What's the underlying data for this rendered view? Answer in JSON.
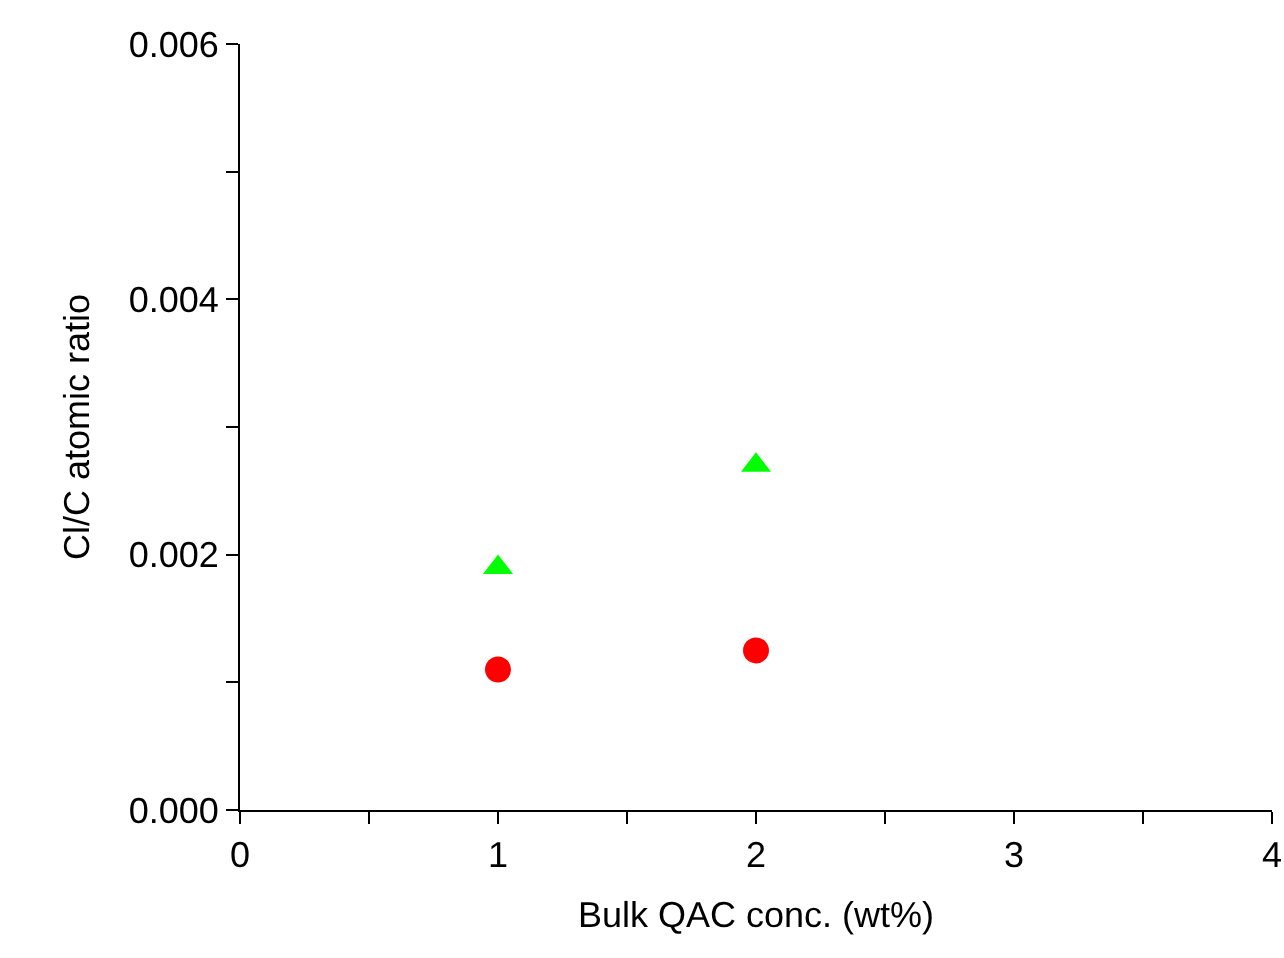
{
  "chart_data": {
    "type": "scatter",
    "xlabel": "Bulk QAC conc. (wt%)",
    "ylabel": "Cl/C atomic ratio",
    "xlim": [
      0,
      4
    ],
    "xticks": [
      0,
      {
        "value": 0.5,
        "label": null
      },
      1,
      {
        "value": 1.5,
        "label": null
      },
      2,
      {
        "value": 2.5,
        "label": null
      },
      3,
      {
        "value": 3.5,
        "label": null
      },
      4
    ],
    "ylim": [
      0,
      0.006
    ],
    "yticks": [
      {
        "value": 0,
        "label": "0.000"
      },
      {
        "value": 0.001,
        "label": null
      },
      {
        "value": 0.002,
        "label": "0.002"
      },
      {
        "value": 0.003,
        "label": null
      },
      {
        "value": 0.004,
        "label": "0.004"
      },
      {
        "value": 0.005,
        "label": null
      },
      {
        "value": 0.006,
        "label": "0.006"
      }
    ],
    "grid": false,
    "x": [
      1,
      2
    ],
    "series": [
      {
        "color": "#ff0000",
        "marker": "circle",
        "values": [
          0.0011,
          0.00125
        ]
      },
      {
        "color": "#00ff00",
        "marker": "triangle",
        "values": [
          0.0019,
          0.0027
        ]
      }
    ]
  }
}
